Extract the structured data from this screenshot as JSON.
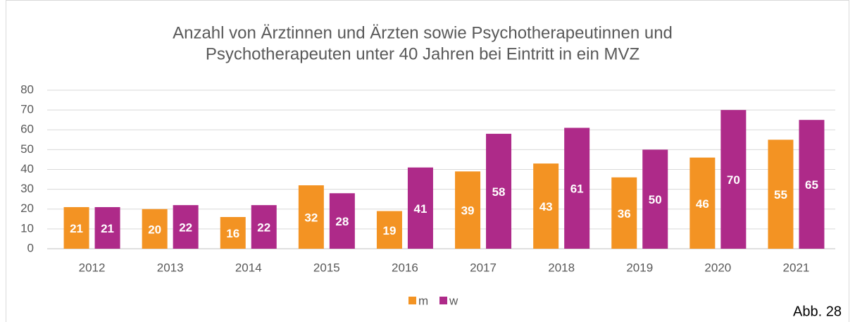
{
  "chart_data": {
    "type": "bar",
    "title": [
      "Anzahl von Ärztinnen und Ärzten sowie Psychotherapeutinnen und",
      "Psychotherapeuten unter 40 Jahren bei Eintritt in ein MVZ"
    ],
    "categories": [
      "2012",
      "2013",
      "2014",
      "2015",
      "2016",
      "2017",
      "2018",
      "2019",
      "2020",
      "2021"
    ],
    "series": [
      {
        "name": "m",
        "color": "#f39323",
        "values": [
          21,
          20,
          16,
          32,
          19,
          39,
          43,
          36,
          46,
          55
        ]
      },
      {
        "name": "w",
        "color": "#ae2a89",
        "values": [
          21,
          22,
          22,
          28,
          41,
          58,
          61,
          50,
          70,
          65
        ]
      }
    ],
    "ylim": [
      0,
      80
    ],
    "yticks": [
      0,
      10,
      20,
      30,
      40,
      50,
      60,
      70,
      80
    ],
    "grid": true,
    "legend": "bottom",
    "note": "Abb. 28"
  }
}
